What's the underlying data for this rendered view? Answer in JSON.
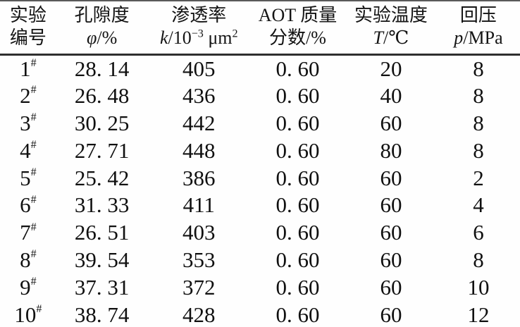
{
  "table": {
    "title_semantic": "core-flooding-experiment-parameters",
    "row_number_suffix": "#",
    "columns": [
      {
        "id": "no",
        "line1": "实验",
        "line2_parts": [
          {
            "t": "编号"
          }
        ]
      },
      {
        "id": "porosity",
        "line1": "孔隙度",
        "line2_parts": [
          {
            "t": "φ",
            "i": true
          },
          {
            "t": "/%"
          }
        ]
      },
      {
        "id": "permeability",
        "line1": "渗透率",
        "line2_parts": [
          {
            "t": "k",
            "i": true
          },
          {
            "t": "/10"
          },
          {
            "t": "−3",
            "sup": true
          },
          {
            "t": " μm"
          },
          {
            "t": "2",
            "sup": true
          }
        ]
      },
      {
        "id": "aot",
        "line1": "AOT 质量",
        "line2_parts": [
          {
            "t": "分数/%"
          }
        ]
      },
      {
        "id": "temperature",
        "line1": "实验温度",
        "line2_parts": [
          {
            "t": "T",
            "i": true
          },
          {
            "t": "/℃"
          }
        ]
      },
      {
        "id": "back_pressure",
        "line1": "回压",
        "line2_parts": [
          {
            "t": "p",
            "i": true
          },
          {
            "t": "/MPa"
          }
        ]
      }
    ],
    "rows": [
      {
        "no": "1",
        "porosity": "28. 14",
        "permeability": "405",
        "aot": "0. 60",
        "temperature": "20",
        "back_pressure": "8"
      },
      {
        "no": "2",
        "porosity": "26. 48",
        "permeability": "436",
        "aot": "0. 60",
        "temperature": "40",
        "back_pressure": "8"
      },
      {
        "no": "3",
        "porosity": "30. 25",
        "permeability": "442",
        "aot": "0. 60",
        "temperature": "60",
        "back_pressure": "8"
      },
      {
        "no": "4",
        "porosity": "27. 71",
        "permeability": "448",
        "aot": "0. 60",
        "temperature": "80",
        "back_pressure": "8"
      },
      {
        "no": "5",
        "porosity": "25. 42",
        "permeability": "386",
        "aot": "0. 60",
        "temperature": "60",
        "back_pressure": "2"
      },
      {
        "no": "6",
        "porosity": "31. 33",
        "permeability": "411",
        "aot": "0. 60",
        "temperature": "60",
        "back_pressure": "4"
      },
      {
        "no": "7",
        "porosity": "26. 51",
        "permeability": "403",
        "aot": "0. 60",
        "temperature": "60",
        "back_pressure": "6"
      },
      {
        "no": "8",
        "porosity": "39. 54",
        "permeability": "353",
        "aot": "0. 60",
        "temperature": "60",
        "back_pressure": "8"
      },
      {
        "no": "9",
        "porosity": "37. 31",
        "permeability": "372",
        "aot": "0. 60",
        "temperature": "60",
        "back_pressure": "10"
      },
      {
        "no": "10",
        "porosity": "38. 74",
        "permeability": "428",
        "aot": "0. 60",
        "temperature": "60",
        "back_pressure": "12"
      }
    ]
  }
}
